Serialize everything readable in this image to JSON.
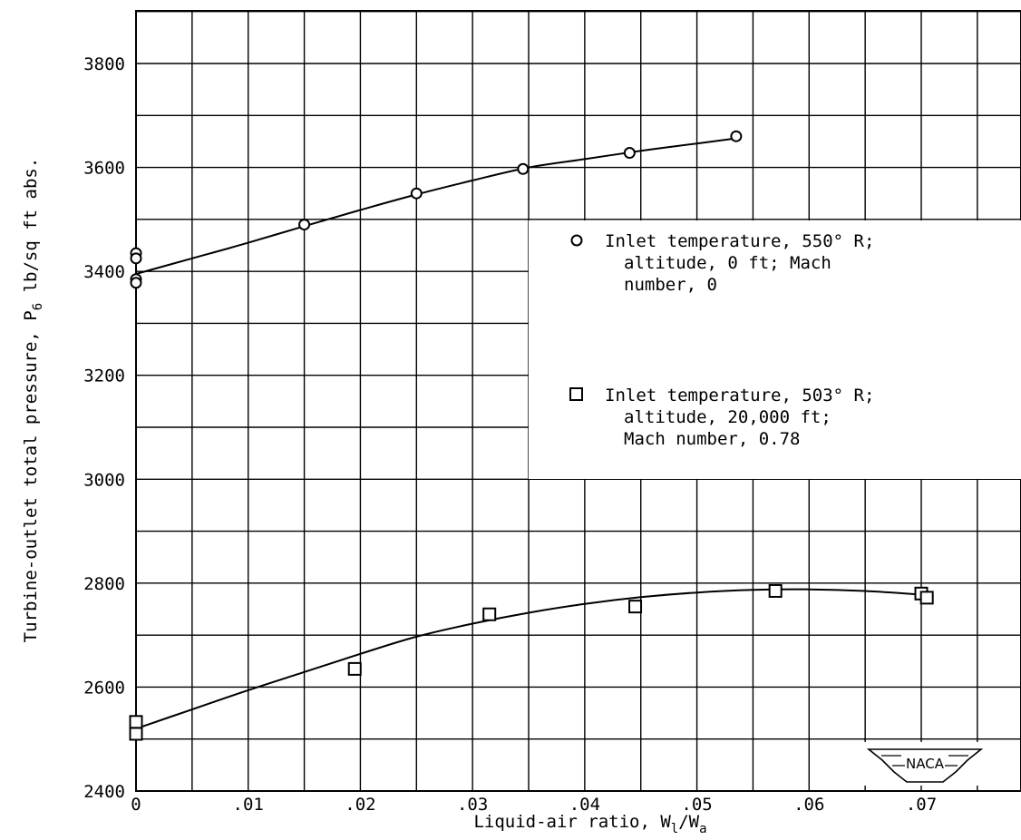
{
  "chart_data": {
    "type": "scatter",
    "title": "",
    "xlabel": {
      "main": "Liquid-air ratio, W",
      "sub1": "l",
      "slash": "/W",
      "sub2": "a"
    },
    "ylabel": {
      "main": "Turbine-outlet total pressure, P",
      "sub": "6",
      "unit": " lb/sq ft abs."
    },
    "xlim": [
      0,
      0.08
    ],
    "ylim": [
      2400,
      3900
    ],
    "x_ticks": [
      {
        "value": 0,
        "label": "0"
      },
      {
        "value": 0.01,
        "label": ".01"
      },
      {
        "value": 0.02,
        "label": ".02"
      },
      {
        "value": 0.03,
        "label": ".03"
      },
      {
        "value": 0.04,
        "label": ".04"
      },
      {
        "value": 0.05,
        "label": ".05"
      },
      {
        "value": 0.06,
        "label": ".06"
      },
      {
        "value": 0.07,
        "label": ".07"
      }
    ],
    "y_ticks": [
      {
        "value": 2400,
        "label": "2400"
      },
      {
        "value": 2600,
        "label": "2600"
      },
      {
        "value": 2800,
        "label": "2800"
      },
      {
        "value": 3000,
        "label": "3000"
      },
      {
        "value": 3200,
        "label": "3200"
      },
      {
        "value": 3400,
        "label": "3400"
      },
      {
        "value": 3600,
        "label": "3600"
      },
      {
        "value": 3800,
        "label": "3800"
      }
    ],
    "grid": {
      "x_step": 0.005,
      "y_step": 100
    },
    "legend_position": "right-middle",
    "series": [
      {
        "marker": "circle",
        "legend_lines": [
          "Inlet temperature, 550° R;",
          "altitude, 0 ft; Mach",
          "number, 0"
        ],
        "points": [
          {
            "x": 0,
            "y": 3435
          },
          {
            "x": 0,
            "y": 3425
          },
          {
            "x": 0,
            "y": 3385
          },
          {
            "x": 0,
            "y": 3378
          },
          {
            "x": 0.015,
            "y": 3490
          },
          {
            "x": 0.025,
            "y": 3550
          },
          {
            "x": 0.0345,
            "y": 3597
          },
          {
            "x": 0.044,
            "y": 3628
          },
          {
            "x": 0.0535,
            "y": 3660
          }
        ],
        "curve": [
          {
            "x": 0,
            "y": 3395
          },
          {
            "x": 0.005,
            "y": 3425
          },
          {
            "x": 0.01,
            "y": 3455
          },
          {
            "x": 0.015,
            "y": 3487
          },
          {
            "x": 0.02,
            "y": 3518
          },
          {
            "x": 0.025,
            "y": 3548
          },
          {
            "x": 0.03,
            "y": 3575
          },
          {
            "x": 0.035,
            "y": 3600
          },
          {
            "x": 0.04,
            "y": 3616
          },
          {
            "x": 0.045,
            "y": 3632
          },
          {
            "x": 0.05,
            "y": 3646
          },
          {
            "x": 0.0535,
            "y": 3656
          }
        ]
      },
      {
        "marker": "square",
        "legend_lines": [
          "Inlet temperature, 503° R;",
          "altitude, 20,000 ft;",
          "Mach number, 0.78"
        ],
        "points": [
          {
            "x": 0,
            "y": 2533
          },
          {
            "x": 0,
            "y": 2510
          },
          {
            "x": 0.0195,
            "y": 2635
          },
          {
            "x": 0.0315,
            "y": 2740
          },
          {
            "x": 0.0445,
            "y": 2755
          },
          {
            "x": 0.057,
            "y": 2785
          },
          {
            "x": 0.07,
            "y": 2780
          },
          {
            "x": 0.0705,
            "y": 2772
          }
        ],
        "curve": [
          {
            "x": 0,
            "y": 2520
          },
          {
            "x": 0.005,
            "y": 2557
          },
          {
            "x": 0.01,
            "y": 2594
          },
          {
            "x": 0.015,
            "y": 2629
          },
          {
            "x": 0.02,
            "y": 2664
          },
          {
            "x": 0.025,
            "y": 2697
          },
          {
            "x": 0.03,
            "y": 2722
          },
          {
            "x": 0.035,
            "y": 2743
          },
          {
            "x": 0.04,
            "y": 2760
          },
          {
            "x": 0.045,
            "y": 2773
          },
          {
            "x": 0.05,
            "y": 2782
          },
          {
            "x": 0.055,
            "y": 2787
          },
          {
            "x": 0.06,
            "y": 2788
          },
          {
            "x": 0.065,
            "y": 2785
          },
          {
            "x": 0.07,
            "y": 2778
          }
        ]
      }
    ],
    "logo_text": "NACA"
  }
}
